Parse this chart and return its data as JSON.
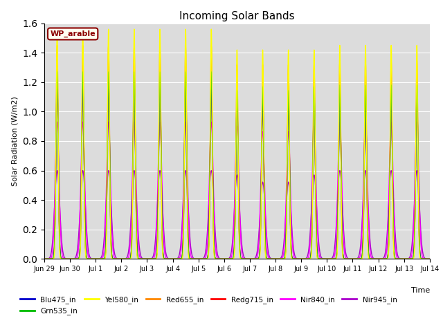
{
  "title": "Incoming Solar Bands",
  "xlabel": "Time",
  "ylabel": "Solar Radiation (W/m2)",
  "annotation": "WP_arable",
  "ylim": [
    0,
    1.6
  ],
  "background_color": "#dcdcdc",
  "series_order": [
    "Nir945_in",
    "Nir840_in",
    "Redg715_in",
    "Red655_in",
    "Blu475_in",
    "Grn535_in",
    "Yel580_in"
  ],
  "series": {
    "Blu475_in": {
      "color": "#0000cc",
      "peak": 1.22,
      "sigma": 0.045,
      "lw": 1.0
    },
    "Grn535_in": {
      "color": "#00bb00",
      "peak": 1.27,
      "sigma": 0.045,
      "lw": 1.0
    },
    "Yel580_in": {
      "color": "#ffff00",
      "peak": 1.56,
      "sigma": 0.038,
      "lw": 1.0
    },
    "Red655_in": {
      "color": "#ff8800",
      "peak": 1.45,
      "sigma": 0.042,
      "lw": 1.0
    },
    "Redg715_in": {
      "color": "#ff0000",
      "peak": 1.2,
      "sigma": 0.046,
      "lw": 1.0
    },
    "Nir840_in": {
      "color": "#ff00ff",
      "peak": 0.93,
      "sigma": 0.075,
      "lw": 1.0
    },
    "Nir945_in": {
      "color": "#aa00cc",
      "peak": 0.6,
      "sigma": 0.1,
      "lw": 1.0
    }
  },
  "n_days": 16,
  "points_per_day": 500,
  "tick_labels": [
    "Jun 29",
    "Jun 30",
    "Jul 1",
    "Jul 2",
    "Jul 3",
    "Jul 4",
    "Jul 5",
    "Jul 6",
    "Jul 7",
    "Jul 8",
    "Jul 9",
    "Jul 10",
    "Jul 11",
    "Jul 12",
    "Jul 13",
    "Jul 14"
  ],
  "legend_order": [
    "Blu475_in",
    "Grn535_in",
    "Yel580_in",
    "Red655_in",
    "Redg715_in",
    "Nir840_in",
    "Nir945_in"
  ],
  "day_peaks": {
    "Blu475_in": [
      1.0,
      1.0,
      1.0,
      1.0,
      1.0,
      1.0,
      1.0,
      0.9,
      0.92,
      0.9,
      0.92,
      0.93,
      0.93,
      0.93,
      0.93,
      1.0
    ],
    "Grn535_in": [
      1.0,
      1.0,
      1.0,
      1.0,
      1.0,
      1.0,
      1.0,
      0.9,
      0.92,
      0.9,
      0.92,
      0.93,
      0.93,
      0.93,
      0.93,
      1.0
    ],
    "Yel580_in": [
      1.0,
      1.0,
      1.0,
      1.0,
      1.0,
      1.0,
      1.0,
      0.91,
      0.91,
      0.91,
      0.91,
      0.93,
      0.93,
      0.93,
      0.93,
      1.0
    ],
    "Red655_in": [
      1.0,
      1.0,
      1.0,
      1.0,
      1.0,
      1.0,
      1.0,
      0.91,
      0.91,
      0.91,
      0.91,
      0.93,
      0.93,
      0.93,
      0.93,
      1.0
    ],
    "Redg715_in": [
      1.0,
      1.0,
      1.0,
      1.0,
      1.0,
      1.0,
      1.0,
      0.91,
      0.91,
      0.91,
      0.91,
      0.93,
      0.93,
      0.93,
      0.93,
      1.0
    ],
    "Nir840_in": [
      1.0,
      1.0,
      1.0,
      1.0,
      1.0,
      1.0,
      1.0,
      0.97,
      0.93,
      0.93,
      0.97,
      1.0,
      1.0,
      1.0,
      1.0,
      1.0
    ],
    "Nir945_in": [
      1.0,
      1.0,
      1.0,
      1.0,
      1.0,
      1.0,
      1.0,
      0.95,
      0.87,
      0.87,
      0.95,
      1.0,
      1.0,
      1.0,
      1.0,
      1.0
    ]
  }
}
